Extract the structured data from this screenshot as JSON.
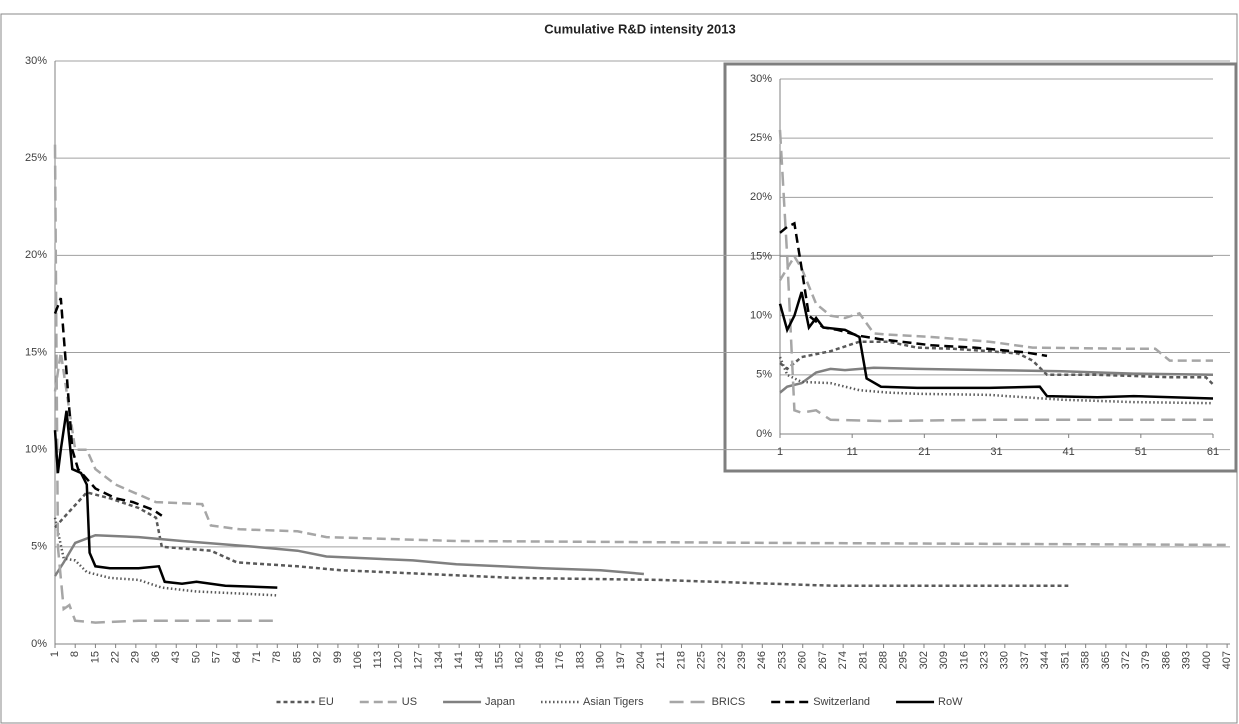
{
  "chart_data": [
    {
      "type": "line",
      "title": "Cumulative R&D intensity 2013",
      "legend": "bottom",
      "grid": true,
      "xlim": [
        1,
        408
      ],
      "xticks": [
        1,
        8,
        15,
        22,
        29,
        36,
        43,
        50,
        57,
        64,
        71,
        78,
        85,
        92,
        99,
        106,
        113,
        120,
        127,
        134,
        141,
        148,
        155,
        162,
        169,
        176,
        183,
        190,
        197,
        204,
        211,
        218,
        225,
        232,
        239,
        246,
        253,
        260,
        267,
        274,
        281,
        288,
        295,
        302,
        309,
        316,
        323,
        330,
        337,
        344,
        351,
        358,
        365,
        372,
        379,
        386,
        393,
        400,
        407
      ],
      "ylim": [
        0,
        30
      ],
      "yticks": [
        {
          "value": 0,
          "label": "0%"
        },
        {
          "value": 5,
          "label": "5%"
        },
        {
          "value": 10,
          "label": "10%"
        },
        {
          "value": 15,
          "label": "15%"
        },
        {
          "value": 20,
          "label": "20%"
        },
        {
          "value": 25,
          "label": "25%"
        },
        {
          "value": 30,
          "label": "30%"
        }
      ],
      "series": [
        {
          "name": "EU",
          "color": "#595959",
          "dash": "short-dash",
          "x": [
            1,
            4,
            12,
            20,
            30,
            36,
            38,
            55,
            64,
            85,
            100,
            130,
            160,
            210,
            250,
            270,
            352
          ],
          "values": [
            6,
            6.5,
            7.8,
            7.5,
            7,
            6.5,
            5,
            4.8,
            4.2,
            4,
            3.8,
            3.6,
            3.4,
            3.3,
            3.1,
            3,
            3
          ]
        },
        {
          "name": "US",
          "color": "#a6a6a6",
          "dash": "dash",
          "x": [
            1,
            3,
            8,
            12,
            15,
            22,
            36,
            52,
            55,
            65,
            85,
            95,
            140,
            250,
            407
          ],
          "values": [
            13,
            15,
            10,
            10,
            9,
            8.2,
            7.3,
            7.2,
            6.1,
            5.9,
            5.8,
            5.5,
            5.3,
            5.2,
            5.1
          ]
        },
        {
          "name": "Japan",
          "color": "#808080",
          "dash": "solid",
          "x": [
            1,
            4,
            8,
            15,
            30,
            45,
            70,
            85,
            95,
            125,
            140,
            170,
            190,
            205
          ],
          "values": [
            3.5,
            4.2,
            5.2,
            5.6,
            5.5,
            5.3,
            5,
            4.8,
            4.5,
            4.3,
            4.1,
            3.9,
            3.8,
            3.6
          ]
        },
        {
          "name": "Asian Tigers",
          "color": "#595959",
          "dash": "dot",
          "x": [
            1,
            4,
            8,
            12,
            20,
            30,
            38,
            50,
            65,
            78
          ],
          "values": [
            6.5,
            4.4,
            4.3,
            3.7,
            3.4,
            3.3,
            2.9,
            2.7,
            2.6,
            2.5
          ]
        },
        {
          "name": "BRICS",
          "color": "#a6a6a6",
          "dash": "long-dash",
          "x": [
            1,
            2,
            4,
            6,
            8,
            15,
            30,
            78
          ],
          "values": [
            25.7,
            5,
            1.8,
            2,
            1.2,
            1.1,
            1.2,
            1.2
          ]
        },
        {
          "name": "Switzerland",
          "color": "#000000",
          "dash": "dash",
          "x": [
            1,
            3,
            5,
            7,
            9,
            12,
            15,
            22,
            28,
            35,
            38
          ],
          "values": [
            17,
            17.8,
            14,
            10,
            9,
            8.5,
            8,
            7.5,
            7.3,
            6.9,
            6.6
          ]
        },
        {
          "name": "RoW",
          "color": "#000000",
          "dash": "solid",
          "x": [
            1,
            2,
            3,
            5,
            7,
            10,
            12,
            13,
            15,
            20,
            30,
            37,
            39,
            45,
            50,
            60,
            78
          ],
          "values": [
            11,
            8.8,
            10,
            12,
            9,
            8.8,
            8.2,
            4.7,
            4,
            3.9,
            3.9,
            4,
            3.2,
            3.1,
            3.2,
            3,
            2.9
          ]
        }
      ]
    },
    {
      "type": "line",
      "grid": true,
      "xlim": [
        1,
        61
      ],
      "xticks": [
        1,
        11,
        21,
        31,
        41,
        51,
        61
      ],
      "ylim": [
        0,
        30
      ],
      "yticks": [
        {
          "value": 0,
          "label": "0%"
        },
        {
          "value": 5,
          "label": "5%"
        },
        {
          "value": 10,
          "label": "10%"
        },
        {
          "value": 15,
          "label": "15%"
        },
        {
          "value": 20,
          "label": "20%"
        },
        {
          "value": 25,
          "label": "25%"
        },
        {
          "value": 30,
          "label": "30%"
        }
      ],
      "series": [
        {
          "color": "#595959",
          "dash": "short-dash",
          "x": [
            1,
            2,
            4,
            8,
            12,
            16,
            20,
            25,
            30,
            34,
            36,
            38,
            45,
            55,
            60,
            61
          ],
          "values": [
            6,
            5.5,
            6.5,
            7,
            7.8,
            7.8,
            7.3,
            7.2,
            7,
            6.8,
            6.2,
            5,
            5,
            4.8,
            4.8,
            4.2
          ]
        },
        {
          "color": "#a6a6a6",
          "dash": "dash",
          "x": [
            1,
            3,
            4,
            6,
            8,
            10,
            12,
            14,
            16,
            22,
            30,
            36,
            50,
            53,
            55,
            61
          ],
          "values": [
            13,
            15,
            14,
            11,
            10,
            9.8,
            10.2,
            8.5,
            8.4,
            8.2,
            7.8,
            7.3,
            7.2,
            7.2,
            6.2,
            6.2
          ]
        },
        {
          "color": "#808080",
          "dash": "solid",
          "x": [
            1,
            2,
            4,
            6,
            8,
            10,
            14,
            20,
            30,
            40,
            50,
            61
          ],
          "values": [
            3.5,
            4,
            4.3,
            5.2,
            5.5,
            5.4,
            5.6,
            5.5,
            5.4,
            5.3,
            5.1,
            5
          ]
        },
        {
          "color": "#595959",
          "dash": "dot",
          "x": [
            1,
            2,
            4,
            8,
            12,
            16,
            20,
            30,
            40,
            50,
            61
          ],
          "values": [
            6.5,
            5,
            4.4,
            4.3,
            3.7,
            3.5,
            3.4,
            3.3,
            2.9,
            2.7,
            2.6
          ]
        },
        {
          "color": "#a6a6a6",
          "dash": "long-dash",
          "x": [
            1,
            2,
            3,
            4,
            6,
            8,
            15,
            30,
            61
          ],
          "values": [
            25.7,
            15,
            2,
            1.8,
            2,
            1.2,
            1.1,
            1.2,
            1.2
          ]
        },
        {
          "color": "#000000",
          "dash": "dash",
          "x": [
            1,
            2,
            3,
            4,
            5,
            7,
            9,
            12,
            15,
            22,
            28,
            35,
            38
          ],
          "values": [
            17,
            17.5,
            17.8,
            14,
            10,
            9,
            8.8,
            8.3,
            8,
            7.5,
            7.3,
            6.9,
            6.6
          ]
        },
        {
          "color": "#000000",
          "dash": "solid",
          "x": [
            1,
            2,
            3,
            4,
            5,
            6,
            7,
            10,
            12,
            13,
            15,
            20,
            30,
            37,
            38,
            45,
            50,
            61
          ],
          "values": [
            11,
            8.8,
            10,
            12,
            9,
            9.8,
            9,
            8.8,
            8.2,
            4.7,
            4,
            3.9,
            3.9,
            4,
            3.2,
            3.1,
            3.2,
            3
          ]
        }
      ]
    }
  ]
}
